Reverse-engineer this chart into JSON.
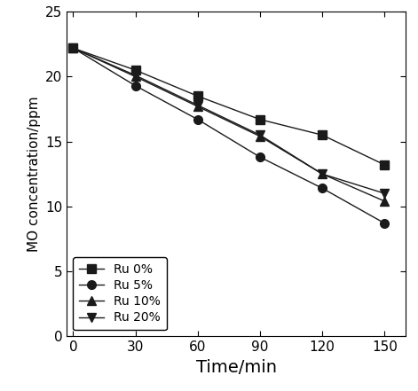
{
  "x": [
    0,
    30,
    60,
    90,
    120,
    150
  ],
  "series": [
    {
      "label": "Ru 0%",
      "y": [
        22.2,
        20.5,
        18.5,
        16.7,
        15.5,
        13.2
      ],
      "marker": "s",
      "color": "#1a1a1a",
      "linestyle": "-"
    },
    {
      "label": "Ru 5%",
      "y": [
        22.2,
        19.3,
        16.7,
        13.8,
        11.4,
        8.7
      ],
      "marker": "o",
      "color": "#1a1a1a",
      "linestyle": "-"
    },
    {
      "label": "Ru 10%",
      "y": [
        22.2,
        20.0,
        17.7,
        15.4,
        12.5,
        10.4
      ],
      "marker": "^",
      "color": "#1a1a1a",
      "linestyle": "-"
    },
    {
      "label": "Ru 20%",
      "y": [
        22.2,
        20.1,
        17.8,
        15.5,
        12.5,
        11.0
      ],
      "marker": "v",
      "color": "#1a1a1a",
      "linestyle": "-"
    }
  ],
  "xlabel": "Time/min",
  "ylabel": "MO concentration/ppm",
  "xlim": [
    -3,
    160
  ],
  "ylim": [
    0,
    25
  ],
  "xticks": [
    0,
    30,
    60,
    90,
    120,
    150
  ],
  "yticks": [
    0,
    5,
    10,
    15,
    20,
    25
  ],
  "legend_loc": "lower left",
  "background_color": "#ffffff",
  "marker_size": 7,
  "linewidth": 1.0,
  "xlabel_fontsize": 14,
  "ylabel_fontsize": 11,
  "tick_labelsize": 11
}
